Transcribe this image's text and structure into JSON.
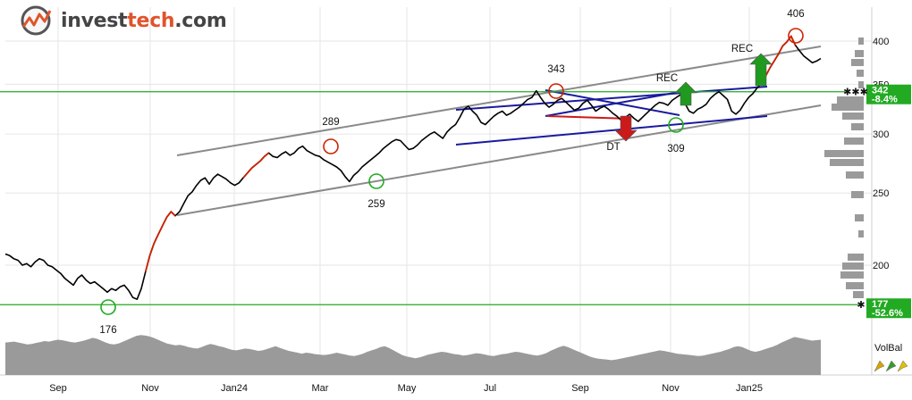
{
  "brand": {
    "name_prefix": "invest",
    "name_suffix": "tech",
    "name_tld": ".com"
  },
  "colors": {
    "price": "#000000",
    "price_up": "#cc2200",
    "trend_channel": "#8a8a8a",
    "pattern": "#1a1aa0",
    "support": "#22aa22",
    "volume": "#9a9a9a",
    "histogram": "#9a9a9a",
    "grid": "#e6e6e6",
    "buy_arrow": "#1f9a1f",
    "sell_arrow": "#cc1a1a"
  },
  "chart_data": {
    "type": "line",
    "y_scale": "log",
    "ylim": [
      177,
      420
    ],
    "y_ticks": [
      200,
      250,
      300,
      350,
      400
    ],
    "x_labels": [
      "Sep",
      "Nov",
      "Jan24",
      "Mar",
      "May",
      "Jul",
      "Sep",
      "Nov",
      "Jan25"
    ],
    "series": [
      {
        "values": [
          207,
          206,
          204,
          203,
          200,
          201,
          199,
          202,
          204,
          203,
          200,
          199,
          197,
          195,
          192,
          190,
          188,
          192,
          194,
          191,
          189,
          190,
          188,
          186,
          184,
          186,
          185,
          187,
          188,
          185,
          181,
          180,
          186,
          196,
          206,
          214,
          220,
          226,
          232,
          236,
          233,
          236,
          242,
          248,
          251,
          256,
          260,
          262,
          257,
          262,
          265,
          263,
          261,
          258,
          256,
          258,
          262,
          266,
          270,
          273,
          276,
          280,
          283,
          280,
          279,
          282,
          284,
          281,
          283,
          287,
          289,
          285,
          283,
          281,
          280,
          277,
          275,
          273,
          271,
          268,
          263,
          259,
          264,
          267,
          271,
          274,
          277,
          280,
          283,
          287,
          290,
          293,
          295,
          294,
          290,
          286,
          287,
          290,
          294,
          297,
          300,
          302,
          299,
          296,
          302,
          306,
          309,
          316,
          324,
          327,
          322,
          318,
          311,
          309,
          313,
          317,
          320,
          322,
          318,
          320,
          323,
          326,
          330,
          334,
          336,
          343,
          336,
          330,
          326,
          329,
          333,
          335,
          331,
          327,
          323,
          325,
          330,
          333,
          328,
          322,
          325,
          327,
          324,
          320,
          317,
          313,
          316,
          319,
          315,
          312,
          316,
          320,
          324,
          328,
          331,
          330,
          328,
          333,
          336,
          339,
          330,
          322,
          320,
          324,
          326,
          329,
          335,
          339,
          342,
          338,
          334,
          322,
          319,
          323,
          330,
          336,
          340,
          346,
          351,
          359,
          368,
          376,
          384,
          394,
          399,
          406,
          395,
          388,
          382,
          378,
          374,
          376,
          379
        ]
      }
    ],
    "volume": [
      70,
      71,
      72,
      70,
      68,
      66,
      67,
      69,
      71,
      73,
      72,
      74,
      76,
      75,
      73,
      71,
      70,
      72,
      74,
      77,
      80,
      78,
      74,
      70,
      67,
      66,
      68,
      72,
      76,
      80,
      84,
      86,
      85,
      83,
      80,
      76,
      72,
      68,
      66,
      64,
      65,
      63,
      60,
      58,
      57,
      60,
      64,
      67,
      65,
      62,
      60,
      57,
      54,
      53,
      55,
      57,
      56,
      54,
      52,
      53,
      56,
      59,
      62,
      58,
      55,
      52,
      50,
      48,
      46,
      48,
      47,
      45,
      44,
      43,
      44,
      46,
      48,
      46,
      44,
      42,
      41,
      43,
      46,
      50,
      53,
      56,
      60,
      62,
      58,
      53,
      48,
      43,
      40,
      38,
      36,
      38,
      41,
      44,
      46,
      48,
      50,
      49,
      47,
      45,
      44,
      42,
      43,
      45,
      47,
      46,
      44,
      42,
      41,
      43,
      45,
      46,
      48,
      50,
      49,
      47,
      45,
      43,
      42,
      44,
      47,
      52,
      56,
      60,
      63,
      60,
      56,
      52,
      48,
      44,
      40,
      37,
      35,
      34,
      33,
      32,
      33,
      35,
      37,
      39,
      41,
      43,
      45,
      47,
      49,
      51,
      53,
      52,
      50,
      48,
      46,
      45,
      44,
      43,
      42,
      41,
      42,
      44,
      46,
      48,
      50,
      53,
      56,
      60,
      62,
      60,
      56,
      52,
      50,
      52,
      55,
      58,
      61,
      65,
      70,
      74,
      78,
      82,
      80,
      78,
      76,
      74,
      75,
      76
    ],
    "annotations": [
      {
        "text": "176",
        "value": 176
      },
      {
        "text": "289",
        "value": 289
      },
      {
        "text": "259",
        "value": 259
      },
      {
        "text": "343",
        "value": 343
      },
      {
        "text": "DT"
      },
      {
        "text": "REC"
      },
      {
        "text": "309",
        "value": 309
      },
      {
        "text": "REC"
      },
      {
        "text": "406",
        "value": 406
      }
    ],
    "levels": [
      {
        "value": 342,
        "label": "342",
        "change": "-8.4%"
      },
      {
        "value": 177,
        "label": "177",
        "change": "-52.6%"
      }
    ],
    "indicator_label": "VolBal"
  }
}
